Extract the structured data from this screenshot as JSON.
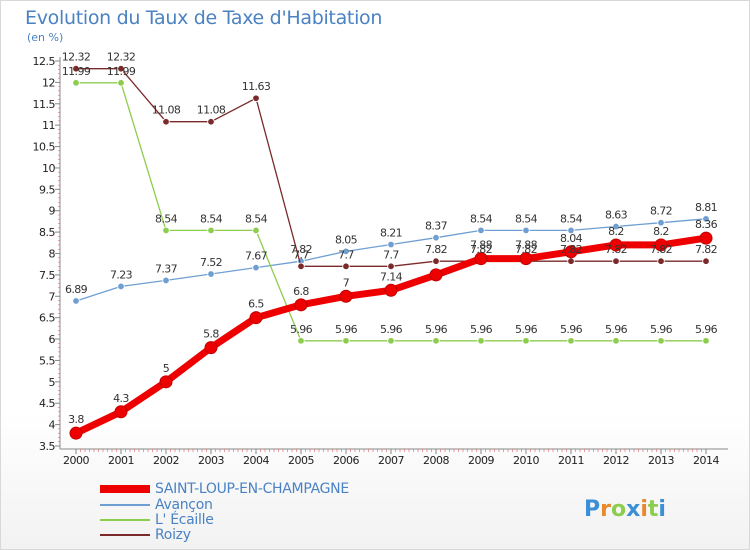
{
  "chart_data": {
    "type": "line",
    "title": "Evolution du Taux de Taxe d'Habitation",
    "unit_label": "(en %)",
    "x": [
      "2000",
      "2001",
      "2002",
      "2003",
      "2004",
      "2005",
      "2006",
      "2007",
      "2008",
      "2009",
      "2010",
      "2011",
      "2012",
      "2013",
      "2014"
    ],
    "ylim": [
      3.5,
      12.5
    ],
    "y_ticks": [
      "3.5",
      "4",
      "4.5",
      "5",
      "5.5",
      "6",
      "6.5",
      "7",
      "7.5",
      "8",
      "8.5",
      "9",
      "9.5",
      "10",
      "10.5",
      "11",
      "11.5",
      "12",
      "12.5"
    ],
    "grid": false,
    "legend_position": "bottom-left",
    "series": [
      {
        "name": "SAINT-LOUP-EN-CHAMPAGNE",
        "color": "#ee0000",
        "values": [
          3.8,
          4.3,
          5,
          5.8,
          6.5,
          6.8,
          7,
          7.14,
          7.5,
          7.88,
          7.88,
          8.04,
          8.2,
          8.2,
          8.36
        ],
        "labels": [
          "3.8",
          "4.3",
          "5",
          "5.8",
          "6.5",
          "6.8",
          "7",
          "7.14",
          "",
          "7.88",
          "7.88",
          "8.04",
          "8.2",
          "8.2",
          "8.36"
        ]
      },
      {
        "name": "Avançon",
        "color": "#6f9fd2",
        "values": [
          6.89,
          7.23,
          7.37,
          7.52,
          7.67,
          7.82,
          8.05,
          8.21,
          8.37,
          8.54,
          8.54,
          8.54,
          8.63,
          8.72,
          8.81
        ],
        "labels": [
          "6.89",
          "7.23",
          "7.37",
          "7.52",
          "7.67",
          "7.82",
          "8.05",
          "8.21",
          "8.37",
          "8.54",
          "8.54",
          "8.54",
          "8.63",
          "8.72",
          "8.81"
        ]
      },
      {
        "name": "L' Écaille",
        "color": "#8ccd4e",
        "values": [
          11.99,
          11.99,
          8.54,
          8.54,
          8.54,
          5.96,
          5.96,
          5.96,
          5.96,
          5.96,
          5.96,
          5.96,
          5.96,
          5.96,
          5.96
        ],
        "labels": [
          "11.99",
          "11.99",
          "8.54",
          "8.54",
          "8.54",
          "5.96",
          "5.96",
          "5.96",
          "5.96",
          "5.96",
          "5.96",
          "5.96",
          "5.96",
          "5.96",
          "5.96"
        ]
      },
      {
        "name": "Roizy",
        "color": "#7a2a2a",
        "values": [
          12.32,
          12.32,
          11.08,
          11.08,
          11.63,
          7.7,
          7.7,
          7.7,
          7.82,
          7.82,
          7.82,
          7.82,
          7.82,
          7.82,
          7.82
        ],
        "labels": [
          "12.32",
          "12.32",
          "11.08",
          "11.08",
          "11.63",
          "7.7",
          "7.7",
          "7.7",
          "7.82",
          "7.82",
          "7.82",
          "7.82",
          "7.82",
          "7.82",
          "7.82"
        ]
      }
    ]
  },
  "logo": {
    "text": "Proxiti"
  }
}
